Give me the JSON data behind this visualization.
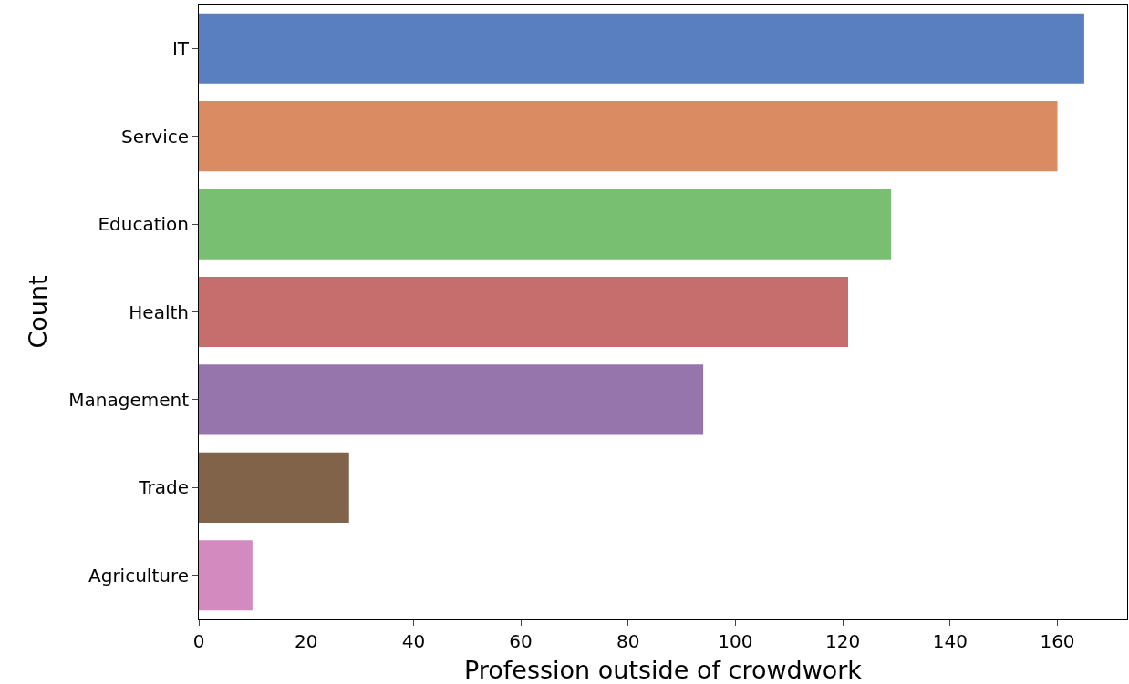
{
  "chart_data": {
    "type": "bar",
    "orientation": "horizontal",
    "xlabel": "Profession outside of crowdwork",
    "ylabel": "Count",
    "categories": [
      "IT",
      "Service",
      "Education",
      "Health",
      "Management",
      "Trade",
      "Agriculture"
    ],
    "values": [
      165,
      160,
      129,
      121,
      94,
      28,
      10
    ],
    "colors": [
      "#5a7fc1",
      "#da8b61",
      "#78bf71",
      "#c66e6e",
      "#9575ab",
      "#81634a",
      "#d38abf"
    ],
    "xlim": [
      0,
      173
    ],
    "xticks": [
      0,
      20,
      40,
      60,
      80,
      100,
      120,
      140,
      160
    ]
  }
}
